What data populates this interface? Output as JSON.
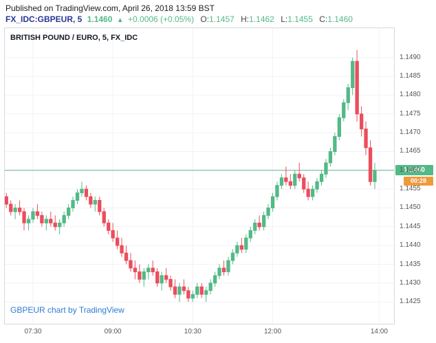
{
  "page": {
    "published_line": "Published on TradingView.com, April 26, 2018 13:59 BST"
  },
  "quote": {
    "symbol": "FX_IDC:GBPEUR, 5",
    "last": "1.1460",
    "direction_icon": "▲",
    "change": "+0.0006 (+0.05%)",
    "ohlc": [
      {
        "label": "O:",
        "value": "1.1457"
      },
      {
        "label": "H:",
        "value": "1.1462"
      },
      {
        "label": "L:",
        "value": "1.1455"
      },
      {
        "label": "C:",
        "value": "1.1460"
      }
    ]
  },
  "chart": {
    "title": "BRITISH POUND / EURO, 5, FX_IDC",
    "watermark": "GBPEUR chart by TradingView",
    "price_badge": "1.1460",
    "countdown_badge": "00:28"
  },
  "colors": {
    "up": "#53b987",
    "down": "#eb4d5c",
    "badge_price_bg": "#53b987",
    "badge_countdown_bg": "#ef9a3d",
    "last_price_line": "#6fae92",
    "symbol_text": "#283593",
    "watermark_link": "#2d7dd2",
    "axis_text": "#555555",
    "grid": "#f0f2f5",
    "border": "#d6d8de"
  },
  "chart_data": {
    "type": "candlestick",
    "title": "BRITISH POUND / EURO",
    "symbol": "FX_IDC:GBPEUR",
    "interval": "5",
    "start_time": "07:00",
    "end_time": "13:55",
    "interval_minutes": 5,
    "y_axis": {
      "range": [
        1.1419,
        1.1498
      ],
      "ticks": [
        "1.1490",
        "1.1485",
        "1.1480",
        "1.1475",
        "1.1470",
        "1.1465",
        "1.1460",
        "1.1455",
        "1.1450",
        "1.1445",
        "1.1440",
        "1.1435",
        "1.1430",
        "1.1425"
      ]
    },
    "x_axis": {
      "total_slots": 88,
      "ticks": [
        {
          "label": "07:30",
          "slot": 6
        },
        {
          "label": "09:00",
          "slot": 24
        },
        {
          "label": "10:30",
          "slot": 42
        },
        {
          "label": "12:00",
          "slot": 60
        },
        {
          "label": "14:00",
          "slot": 84
        }
      ]
    },
    "last_price": 1.146,
    "candles": [
      [
        1.1453,
        1.1454,
        1.145,
        1.1451
      ],
      [
        1.1451,
        1.1452,
        1.1448,
        1.1449
      ],
      [
        1.1449,
        1.1451,
        1.1447,
        1.145
      ],
      [
        1.145,
        1.1452,
        1.1448,
        1.1449
      ],
      [
        1.1449,
        1.145,
        1.1444,
        1.1446
      ],
      [
        1.1446,
        1.1448,
        1.1444,
        1.1447
      ],
      [
        1.1447,
        1.145,
        1.1446,
        1.1449
      ],
      [
        1.1449,
        1.1451,
        1.1447,
        1.1448
      ],
      [
        1.1448,
        1.1449,
        1.1445,
        1.1446
      ],
      [
        1.1446,
        1.1448,
        1.1444,
        1.1447
      ],
      [
        1.1447,
        1.1449,
        1.1445,
        1.1446
      ],
      [
        1.1446,
        1.1448,
        1.1444,
        1.1445
      ],
      [
        1.1445,
        1.1447,
        1.1443,
        1.1446
      ],
      [
        1.1446,
        1.1449,
        1.1445,
        1.1448
      ],
      [
        1.1448,
        1.1451,
        1.1447,
        1.145
      ],
      [
        1.145,
        1.1453,
        1.1449,
        1.1452
      ],
      [
        1.1452,
        1.1455,
        1.1451,
        1.1454
      ],
      [
        1.1454,
        1.1457,
        1.1453,
        1.1455
      ],
      [
        1.1455,
        1.1456,
        1.1452,
        1.1453
      ],
      [
        1.1453,
        1.1454,
        1.145,
        1.1451
      ],
      [
        1.1451,
        1.1453,
        1.1449,
        1.1452
      ],
      [
        1.1452,
        1.1453,
        1.1448,
        1.1449
      ],
      [
        1.1449,
        1.145,
        1.1445,
        1.1446
      ],
      [
        1.1446,
        1.1447,
        1.1443,
        1.1444
      ],
      [
        1.1444,
        1.1446,
        1.1441,
        1.1442
      ],
      [
        1.1442,
        1.1444,
        1.1439,
        1.144
      ],
      [
        1.144,
        1.1442,
        1.1437,
        1.1438
      ],
      [
        1.1438,
        1.144,
        1.1435,
        1.1436
      ],
      [
        1.1436,
        1.1438,
        1.1433,
        1.1434
      ],
      [
        1.1434,
        1.1436,
        1.1431,
        1.1433
      ],
      [
        1.1433,
        1.1435,
        1.143,
        1.1431
      ],
      [
        1.1431,
        1.1434,
        1.1429,
        1.1433
      ],
      [
        1.1433,
        1.1435,
        1.1431,
        1.1434
      ],
      [
        1.1434,
        1.1436,
        1.1432,
        1.1433
      ],
      [
        1.1433,
        1.1434,
        1.1429,
        1.143
      ],
      [
        1.143,
        1.1433,
        1.1428,
        1.1432
      ],
      [
        1.1432,
        1.1434,
        1.143,
        1.1431
      ],
      [
        1.1431,
        1.1432,
        1.1428,
        1.1429
      ],
      [
        1.1429,
        1.1431,
        1.1426,
        1.1427
      ],
      [
        1.1427,
        1.143,
        1.1425,
        1.1429
      ],
      [
        1.1429,
        1.1431,
        1.1427,
        1.1428
      ],
      [
        1.1428,
        1.1429,
        1.1425,
        1.1426
      ],
      [
        1.1426,
        1.1428,
        1.1425,
        1.1427
      ],
      [
        1.1427,
        1.143,
        1.1426,
        1.1429
      ],
      [
        1.1429,
        1.143,
        1.1426,
        1.1427
      ],
      [
        1.1427,
        1.1429,
        1.1425,
        1.1428
      ],
      [
        1.1428,
        1.1431,
        1.1427,
        1.143
      ],
      [
        1.143,
        1.1433,
        1.1429,
        1.1432
      ],
      [
        1.1432,
        1.1435,
        1.1431,
        1.1434
      ],
      [
        1.1434,
        1.1436,
        1.1432,
        1.1433
      ],
      [
        1.1433,
        1.1437,
        1.1432,
        1.1436
      ],
      [
        1.1436,
        1.1439,
        1.1435,
        1.1438
      ],
      [
        1.1438,
        1.1441,
        1.1437,
        1.144
      ],
      [
        1.144,
        1.1442,
        1.1438,
        1.1439
      ],
      [
        1.1439,
        1.1443,
        1.1438,
        1.1442
      ],
      [
        1.1442,
        1.1445,
        1.1441,
        1.1444
      ],
      [
        1.1444,
        1.1447,
        1.1443,
        1.1446
      ],
      [
        1.1446,
        1.1448,
        1.1444,
        1.1445
      ],
      [
        1.1445,
        1.1449,
        1.1444,
        1.1448
      ],
      [
        1.1448,
        1.1451,
        1.1447,
        1.145
      ],
      [
        1.145,
        1.1454,
        1.1449,
        1.1453
      ],
      [
        1.1453,
        1.1457,
        1.1452,
        1.1456
      ],
      [
        1.1456,
        1.1459,
        1.1455,
        1.1458
      ],
      [
        1.1458,
        1.1461,
        1.1456,
        1.1457
      ],
      [
        1.1457,
        1.1459,
        1.1455,
        1.1456
      ],
      [
        1.1456,
        1.146,
        1.1455,
        1.1459
      ],
      [
        1.1459,
        1.1462,
        1.1457,
        1.1458
      ],
      [
        1.1458,
        1.1459,
        1.1454,
        1.1455
      ],
      [
        1.1455,
        1.1457,
        1.1452,
        1.1453
      ],
      [
        1.1453,
        1.1456,
        1.1452,
        1.1455
      ],
      [
        1.1455,
        1.1458,
        1.1454,
        1.1457
      ],
      [
        1.1457,
        1.146,
        1.1456,
        1.1459
      ],
      [
        1.1459,
        1.1463,
        1.1458,
        1.1462
      ],
      [
        1.1462,
        1.1466,
        1.1461,
        1.1465
      ],
      [
        1.1465,
        1.147,
        1.1464,
        1.1469
      ],
      [
        1.1469,
        1.1475,
        1.1468,
        1.1474
      ],
      [
        1.1474,
        1.1479,
        1.1473,
        1.1478
      ],
      [
        1.1478,
        1.1483,
        1.1476,
        1.1482
      ],
      [
        1.1482,
        1.149,
        1.148,
        1.1489
      ],
      [
        1.1489,
        1.1492,
        1.1473,
        1.1475
      ],
      [
        1.1475,
        1.1477,
        1.1469,
        1.1471
      ],
      [
        1.1471,
        1.1473,
        1.1464,
        1.1466
      ],
      [
        1.1466,
        1.1468,
        1.1456,
        1.1457
      ],
      [
        1.1457,
        1.1462,
        1.1455,
        1.146
      ]
    ]
  }
}
